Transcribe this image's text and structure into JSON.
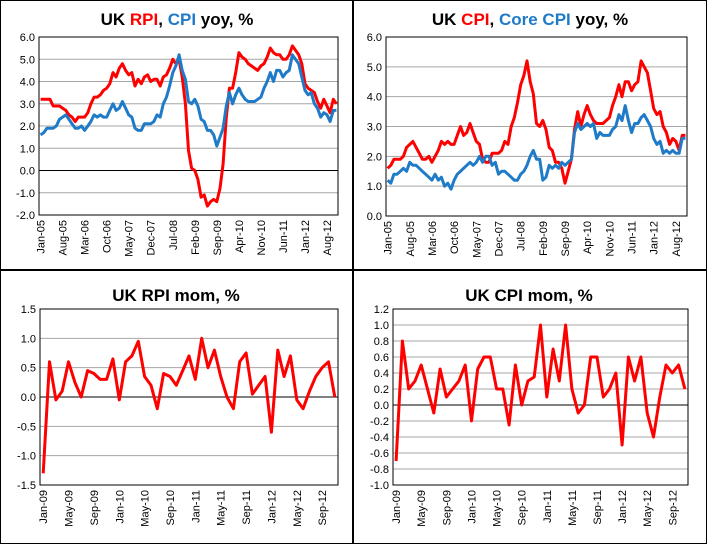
{
  "chart_data": [
    {
      "type": "line",
      "title_parts": [
        {
          "text": "UK ",
          "color": "#000000"
        },
        {
          "text": "RPI",
          "color": "#ff0000"
        },
        {
          "text": ", ",
          "color": "#000000"
        },
        {
          "text": "CPI",
          "color": "#1f7bc8"
        },
        {
          "text": " yoy, %",
          "color": "#000000"
        }
      ],
      "x_start": "Jan-05",
      "n_points": 95,
      "x_tick_labels": [
        "Jan-05",
        "Aug-05",
        "Mar-06",
        "Oct-06",
        "May-07",
        "Dec-07",
        "Jul-08",
        "Feb-09",
        "Sep-09",
        "Apr-10",
        "Nov-10",
        "Jun-11",
        "Jan-12",
        "Aug-12"
      ],
      "x_tick_every": 7,
      "ylim": [
        -2,
        6
      ],
      "y_step": 1,
      "y_decimals": 1,
      "grid": true,
      "series": [
        {
          "name": "RPI",
          "color": "#ff0000",
          "values": [
            3.2,
            3.2,
            3.2,
            3.2,
            2.9,
            2.9,
            2.9,
            2.8,
            2.7,
            2.5,
            2.4,
            2.2,
            2.4,
            2.4,
            2.4,
            2.6,
            3.0,
            3.3,
            3.3,
            3.4,
            3.6,
            3.7,
            3.9,
            4.4,
            4.2,
            4.6,
            4.8,
            4.5,
            4.3,
            4.4,
            3.8,
            4.1,
            3.9,
            4.2,
            4.3,
            4.0,
            4.1,
            4.1,
            3.8,
            4.2,
            4.3,
            4.6,
            5.0,
            4.8,
            5.0,
            4.2,
            3.0,
            0.9,
            0.1,
            0.0,
            -0.4,
            -1.2,
            -1.1,
            -1.6,
            -1.4,
            -1.3,
            -1.4,
            -0.8,
            0.3,
            2.4,
            3.7,
            3.7,
            4.4,
            5.3,
            5.1,
            5.0,
            4.8,
            4.7,
            4.6,
            4.5,
            4.7,
            4.8,
            5.1,
            5.5,
            5.3,
            5.2,
            5.2,
            5.0,
            5.0,
            5.2,
            5.6,
            5.4,
            5.2,
            4.8,
            3.9,
            3.7,
            3.6,
            3.5,
            3.1,
            2.8,
            3.2,
            2.9,
            2.6,
            3.2,
            3.0
          ]
        },
        {
          "name": "CPI",
          "color": "#1f7bc8",
          "values": [
            1.6,
            1.7,
            1.9,
            1.9,
            1.9,
            2.0,
            2.3,
            2.4,
            2.5,
            2.3,
            2.1,
            1.9,
            1.9,
            2.0,
            1.8,
            2.0,
            2.2,
            2.5,
            2.4,
            2.5,
            2.4,
            2.4,
            2.7,
            3.0,
            2.7,
            2.8,
            3.1,
            2.8,
            2.5,
            2.4,
            1.9,
            1.8,
            1.8,
            2.1,
            2.1,
            2.1,
            2.2,
            2.5,
            2.4,
            3.0,
            3.3,
            3.8,
            4.4,
            4.7,
            5.2,
            4.5,
            4.1,
            3.1,
            3.0,
            3.2,
            2.9,
            2.3,
            2.2,
            1.8,
            1.8,
            1.6,
            1.1,
            1.5,
            1.9,
            2.9,
            3.5,
            3.0,
            3.4,
            3.7,
            3.4,
            3.2,
            3.1,
            3.1,
            3.1,
            3.2,
            3.3,
            3.7,
            4.0,
            4.4,
            4.0,
            4.5,
            4.5,
            4.2,
            4.4,
            4.5,
            5.2,
            5.0,
            4.8,
            4.2,
            3.6,
            3.4,
            3.5,
            3.0,
            2.8,
            2.4,
            2.6,
            2.5,
            2.2,
            2.7,
            2.7
          ]
        }
      ]
    },
    {
      "type": "line",
      "title_parts": [
        {
          "text": "UK ",
          "color": "#000000"
        },
        {
          "text": "CPI",
          "color": "#ff0000"
        },
        {
          "text": ", ",
          "color": "#000000"
        },
        {
          "text": "Core CPI",
          "color": "#1f7bc8"
        },
        {
          "text": " yoy, %",
          "color": "#000000"
        }
      ],
      "x_start": "Jan-05",
      "n_points": 95,
      "x_tick_labels": [
        "Jan-05",
        "Aug-05",
        "Mar-06",
        "Oct-06",
        "May-07",
        "Dec-07",
        "Jul-08",
        "Feb-09",
        "Sep-09",
        "Apr-10",
        "Nov-10",
        "Jun-11",
        "Jan-12",
        "Aug-12"
      ],
      "x_tick_every": 7,
      "ylim": [
        0,
        6
      ],
      "y_step": 1,
      "y_decimals": 1,
      "grid": true,
      "series": [
        {
          "name": "CPI",
          "color": "#ff0000",
          "values": [
            1.6,
            1.7,
            1.9,
            1.9,
            1.9,
            2.0,
            2.3,
            2.4,
            2.5,
            2.3,
            2.1,
            1.9,
            1.9,
            2.0,
            1.8,
            2.0,
            2.2,
            2.5,
            2.4,
            2.5,
            2.4,
            2.4,
            2.7,
            3.0,
            2.7,
            2.8,
            3.1,
            2.8,
            2.5,
            2.4,
            1.9,
            1.8,
            1.8,
            2.1,
            2.1,
            2.1,
            2.2,
            2.5,
            2.4,
            3.0,
            3.3,
            3.8,
            4.4,
            4.7,
            5.2,
            4.5,
            4.1,
            3.1,
            3.0,
            3.2,
            2.9,
            2.3,
            2.2,
            1.8,
            1.8,
            1.6,
            1.1,
            1.5,
            1.9,
            2.9,
            3.5,
            3.0,
            3.4,
            3.7,
            3.4,
            3.2,
            3.1,
            3.1,
            3.1,
            3.2,
            3.3,
            3.7,
            4.0,
            4.4,
            4.0,
            4.5,
            4.5,
            4.2,
            4.4,
            4.5,
            5.2,
            5.0,
            4.8,
            4.2,
            3.6,
            3.4,
            3.5,
            3.0,
            2.8,
            2.4,
            2.6,
            2.5,
            2.2,
            2.7,
            2.7
          ]
        },
        {
          "name": "Core CPI",
          "color": "#1f7bc8",
          "values": [
            1.2,
            1.1,
            1.4,
            1.4,
            1.5,
            1.6,
            1.5,
            1.8,
            1.7,
            1.7,
            1.6,
            1.5,
            1.4,
            1.3,
            1.2,
            1.4,
            1.2,
            1.3,
            1.0,
            1.1,
            0.9,
            1.2,
            1.4,
            1.5,
            1.6,
            1.7,
            1.8,
            1.7,
            1.8,
            2.0,
            1.8,
            2.0,
            2.0,
            1.7,
            1.8,
            1.4,
            1.5,
            1.5,
            1.4,
            1.3,
            1.2,
            1.2,
            1.4,
            1.5,
            1.7,
            2.0,
            2.2,
            1.9,
            1.9,
            1.2,
            1.3,
            1.7,
            1.6,
            1.7,
            1.6,
            1.8,
            1.7,
            1.8,
            1.9,
            2.8,
            3.1,
            2.9,
            3.0,
            3.1,
            3.0,
            3.1,
            2.6,
            2.8,
            2.7,
            2.7,
            2.7,
            2.9,
            3.0,
            3.4,
            3.2,
            3.7,
            3.2,
            2.8,
            3.1,
            3.1,
            3.3,
            3.4,
            3.2,
            3.0,
            2.6,
            2.4,
            2.5,
            2.1,
            2.2,
            2.1,
            2.2,
            2.1,
            2.1,
            2.6,
            2.6
          ]
        }
      ]
    },
    {
      "type": "line",
      "title_parts": [
        {
          "text": "UK RPI  mom, %",
          "color": "#000000"
        }
      ],
      "x_start": "Jan-09",
      "n_points": 47,
      "x_tick_labels": [
        "Jan-09",
        "May-09",
        "Sep-09",
        "Jan-10",
        "May-10",
        "Sep-10",
        "Jan-11",
        "May-11",
        "Sep-11",
        "Jan-12",
        "May-12",
        "Sep-12"
      ],
      "x_tick_every": 4,
      "ylim": [
        -1.5,
        1.5
      ],
      "y_step": 0.5,
      "y_decimals": 1,
      "grid": true,
      "series": [
        {
          "name": "RPI mom",
          "color": "#ff0000",
          "values": [
            -1.3,
            0.6,
            -0.05,
            0.1,
            0.6,
            0.25,
            0.0,
            0.45,
            0.4,
            0.3,
            0.3,
            0.65,
            -0.05,
            0.6,
            0.7,
            0.95,
            0.35,
            0.2,
            -0.2,
            0.4,
            0.35,
            0.2,
            0.45,
            0.7,
            0.3,
            1.0,
            0.5,
            0.8,
            0.35,
            0.0,
            -0.2,
            0.6,
            0.75,
            0.05,
            0.2,
            0.35,
            -0.6,
            0.8,
            0.35,
            0.7,
            -0.05,
            -0.2,
            0.1,
            0.35,
            0.5,
            0.6,
            0.0
          ]
        }
      ]
    },
    {
      "type": "line",
      "title_parts": [
        {
          "text": "UK CPI  mom, %",
          "color": "#000000"
        }
      ],
      "x_start": "Jan-09",
      "n_points": 47,
      "x_tick_labels": [
        "Jan-09",
        "May-09",
        "Sep-09",
        "Jan-10",
        "May-10",
        "Sep-10",
        "Jan-11",
        "May-11",
        "Sep-11",
        "Jan-12",
        "May-12",
        "Sep-12"
      ],
      "x_tick_every": 4,
      "ylim": [
        -1.0,
        1.2
      ],
      "y_step": 0.2,
      "y_decimals": 1,
      "grid": true,
      "series": [
        {
          "name": "CPI mom",
          "color": "#ff0000",
          "values": [
            -0.7,
            0.8,
            0.2,
            0.3,
            0.5,
            0.2,
            -0.1,
            0.45,
            0.1,
            0.2,
            0.3,
            0.5,
            -0.2,
            0.45,
            0.6,
            0.6,
            0.2,
            0.2,
            -0.25,
            0.5,
            0.0,
            0.3,
            0.35,
            1.0,
            0.1,
            0.7,
            0.3,
            1.0,
            0.2,
            -0.1,
            0.0,
            0.6,
            0.6,
            0.1,
            0.2,
            0.4,
            -0.5,
            0.6,
            0.3,
            0.6,
            -0.1,
            -0.4,
            0.1,
            0.5,
            0.4,
            0.5,
            0.2
          ]
        }
      ]
    }
  ]
}
